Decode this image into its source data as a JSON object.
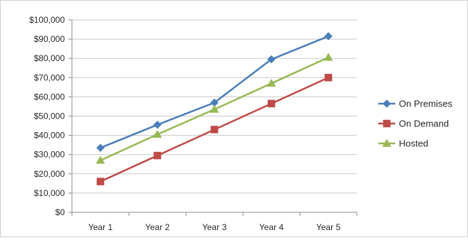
{
  "chart_data": {
    "type": "line",
    "title": "",
    "xlabel": "",
    "ylabel": "",
    "categories": [
      "Year 1",
      "Year 2",
      "Year 3",
      "Year 4",
      "Year 5"
    ],
    "ylim": [
      0,
      100000
    ],
    "yticks": [
      0,
      10000,
      20000,
      30000,
      40000,
      50000,
      60000,
      70000,
      80000,
      90000,
      100000
    ],
    "ytick_labels": [
      "$0",
      "$10,000",
      "$20,000",
      "$30,000",
      "$40,000",
      "$50,000",
      "$60,000",
      "$70,000",
      "$80,000",
      "$90,000",
      "$100,000"
    ],
    "grid": true,
    "legend_position": "right",
    "series": [
      {
        "name": "On Premises",
        "marker": "diamond",
        "color": "#4A7EBB",
        "values": [
          33500,
          45500,
          57000,
          79500,
          91500
        ]
      },
      {
        "name": "On Demand",
        "marker": "square",
        "color": "#BE4B48",
        "values": [
          16000,
          29500,
          43000,
          56500,
          70000
        ]
      },
      {
        "name": "Hosted",
        "marker": "triangle",
        "color": "#98B954",
        "values": [
          27000,
          40500,
          53500,
          67000,
          80500
        ]
      }
    ]
  }
}
